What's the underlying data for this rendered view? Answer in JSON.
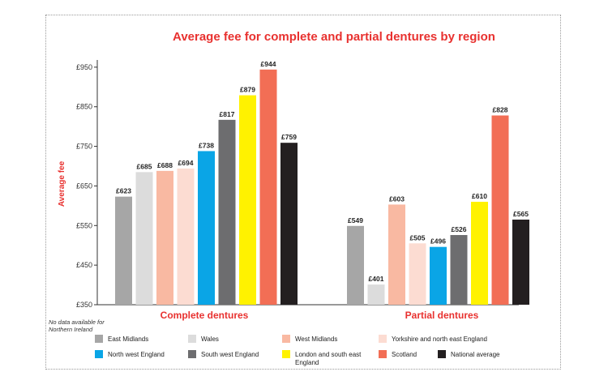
{
  "chart_data": {
    "type": "bar",
    "title": "Average fee for complete and partial dentures by region",
    "ylabel": "Average fee",
    "xlabel": "",
    "ylim": [
      350,
      1000
    ],
    "yticks": [
      "£350",
      "£450",
      "£550",
      "£650",
      "£750",
      "£850",
      "£950"
    ],
    "ytick_values": [
      350,
      450,
      550,
      650,
      750,
      850,
      950
    ],
    "categories": [
      "Complete dentures",
      "Partial dentures"
    ],
    "series": [
      {
        "name": "East Midlands",
        "color": "#a6a6a6",
        "values": [
          623,
          549
        ],
        "labels": [
          "£623",
          "£549"
        ]
      },
      {
        "name": "Wales",
        "color": "#dcdcdc",
        "values": [
          685,
          401
        ],
        "labels": [
          "£685",
          "£401"
        ]
      },
      {
        "name": "West Midlands",
        "color": "#f9b9a2",
        "values": [
          688,
          603
        ],
        "labels": [
          "£688",
          "£603"
        ]
      },
      {
        "name": "Yorkshire and north east England",
        "color": "#fcdcd2",
        "values": [
          694,
          505
        ],
        "labels": [
          "£694",
          "£505"
        ]
      },
      {
        "name": "North west England",
        "color": "#0aa5e6",
        "values": [
          738,
          496
        ],
        "labels": [
          "£738",
          "£496"
        ]
      },
      {
        "name": "South west England",
        "color": "#6d6d6f",
        "values": [
          817,
          526
        ],
        "labels": [
          "£817",
          "£526"
        ]
      },
      {
        "name": "London and south east England",
        "color": "#fff200",
        "values": [
          879,
          610
        ],
        "labels": [
          "£879",
          "£610"
        ]
      },
      {
        "name": "Scotland",
        "color": "#f26e55",
        "values": [
          944,
          828
        ],
        "labels": [
          "£944",
          "£828"
        ]
      },
      {
        "name": "National average",
        "color": "#231f20",
        "values": [
          759,
          565
        ],
        "labels": [
          "£759",
          "£565"
        ]
      }
    ],
    "grid": false,
    "legend_position": "bottom",
    "note": "No data available for Northern Ireland",
    "title_color": "#e8312f"
  }
}
